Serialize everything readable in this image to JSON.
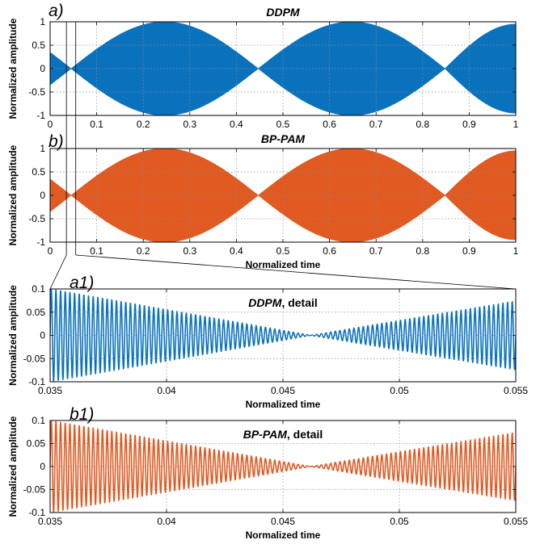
{
  "chart_data": [
    {
      "id": "a",
      "tag": "a)",
      "type": "line",
      "title": "DDPM",
      "title_suffix": "",
      "xlabel": "",
      "ylabel": "Normalized amplitude",
      "xlim": [
        0,
        1
      ],
      "ylim": [
        -1,
        1
      ],
      "xticks": [
        0,
        0.1,
        0.2,
        0.3,
        0.4,
        0.5,
        0.6,
        0.7,
        0.8,
        0.9,
        1
      ],
      "xtick_labels": [
        "0",
        "0.1",
        "0.2",
        "0.3",
        "0.4",
        "0.5",
        "0.6",
        "0.7",
        "0.8",
        "0.9",
        "1"
      ],
      "yticks": [
        -1,
        -0.5,
        0,
        0.5,
        1
      ],
      "ytick_labels": [
        "-1",
        "-0.5",
        "0",
        "0.5",
        "1"
      ],
      "grid": true,
      "color": "#0a72bd",
      "render": "envelope-fill",
      "envelope_nulls": [
        0.045,
        0.447,
        0.848
      ],
      "envelope_peaks": [
        0.245,
        0.647
      ],
      "envelope_start": 0.35,
      "envelope_end": 0.95,
      "carrier_cycles_per_unit": 0
    },
    {
      "id": "b",
      "tag": "b)",
      "type": "line",
      "title": "BP-PAM",
      "title_suffix": "",
      "xlabel": "Normalized time",
      "ylabel": "Normalized amplitude",
      "xlim": [
        0,
        1
      ],
      "ylim": [
        -1,
        1
      ],
      "xticks": [
        0,
        0.1,
        0.2,
        0.3,
        0.4,
        0.5,
        0.6,
        0.7,
        0.8,
        0.9,
        1
      ],
      "xtick_labels": [
        "0",
        "0.1",
        "0.2",
        "0.3",
        "0.4",
        "0.5",
        "0.6",
        "0.7",
        "0.8",
        "0.9",
        "1"
      ],
      "yticks": [
        -1,
        -0.5,
        0,
        0.5,
        1
      ],
      "ytick_labels": [
        "-1",
        "-0.5",
        "0",
        "0.5",
        "1"
      ],
      "grid": true,
      "color": "#e05a22",
      "render": "envelope-fill",
      "envelope_nulls": [
        0.045,
        0.447,
        0.848
      ],
      "envelope_peaks": [
        0.245,
        0.647
      ],
      "envelope_start": 0.35,
      "envelope_end": 0.95,
      "carrier_cycles_per_unit": 0
    },
    {
      "id": "a1",
      "tag": "a1)",
      "type": "line",
      "title": "DDPM",
      "title_suffix": ", detail",
      "xlabel": "Normalized time",
      "ylabel": "Normalized amplitude",
      "xlim": [
        0.035,
        0.055
      ],
      "ylim": [
        -0.1,
        0.1
      ],
      "xticks": [
        0.035,
        0.04,
        0.045,
        0.05,
        0.055
      ],
      "xtick_labels": [
        "0.035",
        "0.04",
        "0.045",
        "0.05",
        "0.055"
      ],
      "yticks": [
        -0.1,
        -0.05,
        0,
        0.05,
        0.1
      ],
      "ytick_labels": [
        "-0.1",
        "-0.05",
        "0",
        "0.05",
        "0.1"
      ],
      "grid": true,
      "color": "#0a72bd",
      "render": "carrier",
      "envelope_nulls": [
        0.0462
      ],
      "envelope_start": 0.1,
      "envelope_end": 0.074,
      "carrier_cycles_per_unit": 5000
    },
    {
      "id": "b1",
      "tag": "b1)",
      "type": "line",
      "title": "BP-PAM",
      "title_suffix": ", detail",
      "xlabel": "Normalized time",
      "ylabel": "Normalized amplitude",
      "xlim": [
        0.035,
        0.055
      ],
      "ylim": [
        -0.1,
        0.1
      ],
      "xticks": [
        0.035,
        0.04,
        0.045,
        0.05,
        0.055
      ],
      "xtick_labels": [
        "0.035",
        "0.04",
        "0.045",
        "0.05",
        "0.055"
      ],
      "yticks": [
        -0.1,
        -0.05,
        0,
        0.05,
        0.1
      ],
      "ytick_labels": [
        "-0.1",
        "-0.05",
        "0",
        "0.05",
        "0.1"
      ],
      "grid": true,
      "color": "#e05a22",
      "render": "carrier",
      "envelope_nulls": [
        0.0462
      ],
      "envelope_start": 0.1,
      "envelope_end": 0.074,
      "carrier_cycles_per_unit": 5000
    }
  ]
}
